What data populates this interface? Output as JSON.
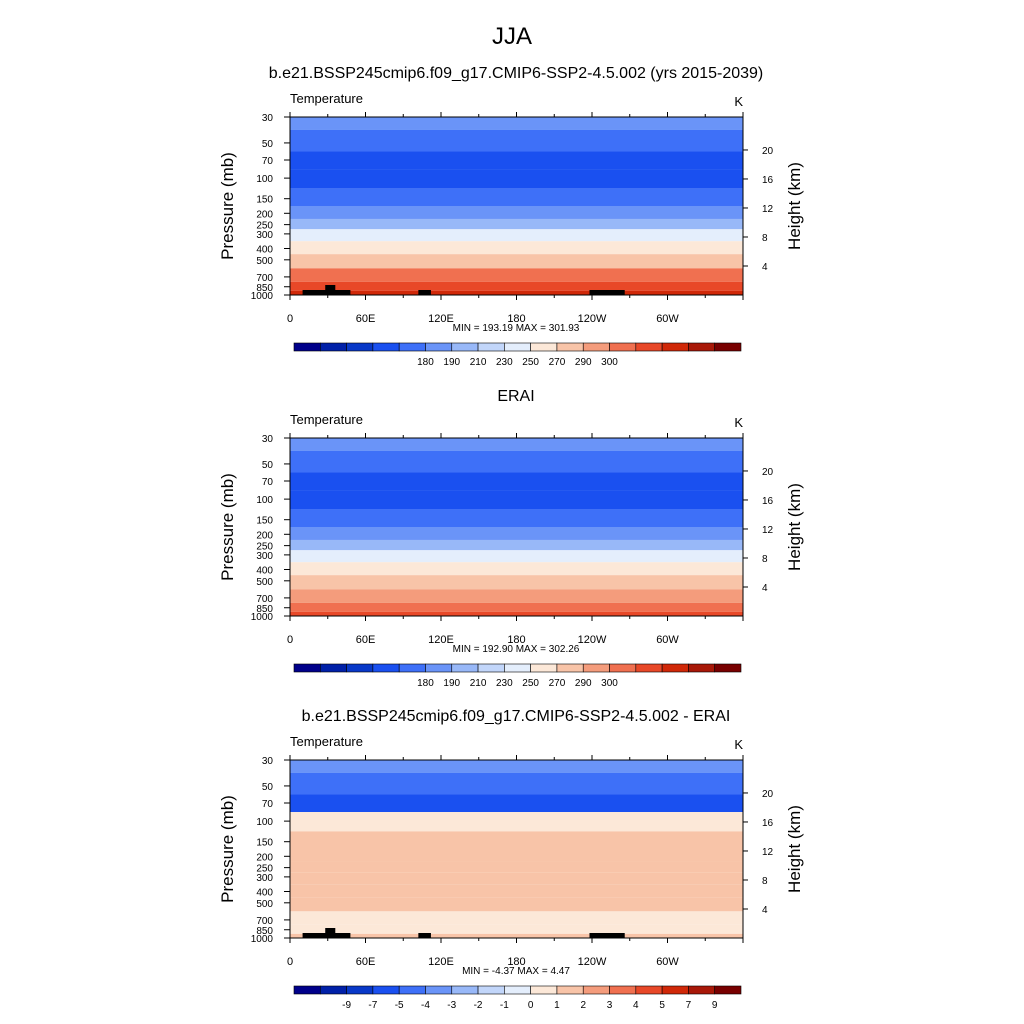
{
  "figure": {
    "title": "JJA"
  },
  "chart_data": [
    {
      "type": "heatmap",
      "title": "b.e21.BSSP245cmip6.f09_g17.CMIP6-SSP2-4.5.002 (yrs 2015-2039)",
      "left_label": "Temperature",
      "units": "K",
      "xlabel": "",
      "ylabel": "Pressure (mb)",
      "right_label": "Height (km)",
      "x_ticks": [
        "0",
        "60E",
        "120E",
        "180",
        "120W",
        "60W"
      ],
      "y_ticks": [
        "30",
        "50",
        "70",
        "100",
        "150",
        "200",
        "250",
        "300",
        "400",
        "500",
        "700",
        "850",
        "1000"
      ],
      "height_ticks": [
        "20",
        "16",
        "12",
        "8",
        "4"
      ],
      "stats": "MIN = 193.19  MAX = 301.93",
      "min": 193.19,
      "max": 301.93,
      "colorbar_labels": [
        "180",
        "190",
        "210",
        "230",
        "250",
        "270",
        "290",
        "300"
      ],
      "colors": [
        "#00008a",
        "#0020a8",
        "#0838c8",
        "#1a50f0",
        "#3e70f8",
        "#6a94f8",
        "#98b8f8",
        "#c2d6fa",
        "#e4eefc",
        "#fce8d8",
        "#f8c4a8",
        "#f49c7c",
        "#f07050",
        "#e84828",
        "#d02808",
        "#a81808",
        "#780000"
      ],
      "levels": [
        {
          "p": 30,
          "band": 5
        },
        {
          "p": 50,
          "band": 4
        },
        {
          "p": 70,
          "band": 3
        },
        {
          "p": 100,
          "band": 3
        },
        {
          "p": 150,
          "band": 4
        },
        {
          "p": 200,
          "band": 5
        },
        {
          "p": 250,
          "band": 6
        },
        {
          "p": 300,
          "band": 8
        },
        {
          "p": 400,
          "band": 9
        },
        {
          "p": 500,
          "band": 10
        },
        {
          "p": 700,
          "band": 12
        },
        {
          "p": 850,
          "band": 13
        },
        {
          "p": 1000,
          "band": 14
        }
      ],
      "topography": true
    },
    {
      "type": "heatmap",
      "title": "ERAI",
      "left_label": "Temperature",
      "units": "K",
      "xlabel": "",
      "ylabel": "Pressure (mb)",
      "right_label": "Height (km)",
      "x_ticks": [
        "0",
        "60E",
        "120E",
        "180",
        "120W",
        "60W"
      ],
      "y_ticks": [
        "30",
        "50",
        "70",
        "100",
        "150",
        "200",
        "250",
        "300",
        "400",
        "500",
        "700",
        "850",
        "1000"
      ],
      "height_ticks": [
        "20",
        "16",
        "12",
        "8",
        "4"
      ],
      "stats": "MIN = 192.90  MAX = 302.26",
      "min": 192.9,
      "max": 302.26,
      "colorbar_labels": [
        "180",
        "190",
        "210",
        "230",
        "250",
        "270",
        "290",
        "300"
      ],
      "colors": [
        "#00008a",
        "#0020a8",
        "#0838c8",
        "#1a50f0",
        "#3e70f8",
        "#6a94f8",
        "#98b8f8",
        "#c2d6fa",
        "#e4eefc",
        "#fce8d8",
        "#f8c4a8",
        "#f49c7c",
        "#f07050",
        "#e84828",
        "#d02808",
        "#a81808",
        "#780000"
      ],
      "levels": [
        {
          "p": 30,
          "band": 5
        },
        {
          "p": 50,
          "band": 4
        },
        {
          "p": 70,
          "band": 3
        },
        {
          "p": 100,
          "band": 3
        },
        {
          "p": 150,
          "band": 4
        },
        {
          "p": 200,
          "band": 5
        },
        {
          "p": 250,
          "band": 6
        },
        {
          "p": 300,
          "band": 8
        },
        {
          "p": 400,
          "band": 9
        },
        {
          "p": 500,
          "band": 10
        },
        {
          "p": 700,
          "band": 11
        },
        {
          "p": 850,
          "band": 12
        },
        {
          "p": 1000,
          "band": 13
        }
      ],
      "topography": false
    },
    {
      "type": "heatmap",
      "title": "b.e21.BSSP245cmip6.f09_g17.CMIP6-SSP2-4.5.002 - ERAI",
      "left_label": "Temperature",
      "units": "K",
      "xlabel": "",
      "ylabel": "Pressure (mb)",
      "right_label": "Height (km)",
      "x_ticks": [
        "0",
        "60E",
        "120E",
        "180",
        "120W",
        "60W"
      ],
      "y_ticks": [
        "30",
        "50",
        "70",
        "100",
        "150",
        "200",
        "250",
        "300",
        "400",
        "500",
        "700",
        "850",
        "1000"
      ],
      "height_ticks": [
        "20",
        "16",
        "12",
        "8",
        "4"
      ],
      "stats": "MIN = -4.37  MAX =   4.47",
      "min": -4.37,
      "max": 4.47,
      "colorbar_labels": [
        "-9",
        "-7",
        "-5",
        "-4",
        "-3",
        "-2",
        "-1",
        "0",
        "1",
        "2",
        "3",
        "4",
        "5",
        "7",
        "9"
      ],
      "colors": [
        "#00008a",
        "#0020a8",
        "#0838c8",
        "#1a50f0",
        "#3e70f8",
        "#6a94f8",
        "#98b8f8",
        "#c2d6fa",
        "#e4eefc",
        "#fce8d8",
        "#f8c4a8",
        "#f49c7c",
        "#f07050",
        "#e84828",
        "#d02808",
        "#a81808",
        "#780000"
      ],
      "levels": [
        {
          "p": 30,
          "band": 5
        },
        {
          "p": 50,
          "band": 4
        },
        {
          "p": 70,
          "band": 3
        },
        {
          "p": 100,
          "band": 9
        },
        {
          "p": 150,
          "band": 10
        },
        {
          "p": 200,
          "band": 10
        },
        {
          "p": 250,
          "band": 10
        },
        {
          "p": 300,
          "band": 10
        },
        {
          "p": 400,
          "band": 10
        },
        {
          "p": 500,
          "band": 10
        },
        {
          "p": 700,
          "band": 9
        },
        {
          "p": 850,
          "band": 9
        },
        {
          "p": 1000,
          "band": 10
        }
      ],
      "topography": true
    }
  ]
}
